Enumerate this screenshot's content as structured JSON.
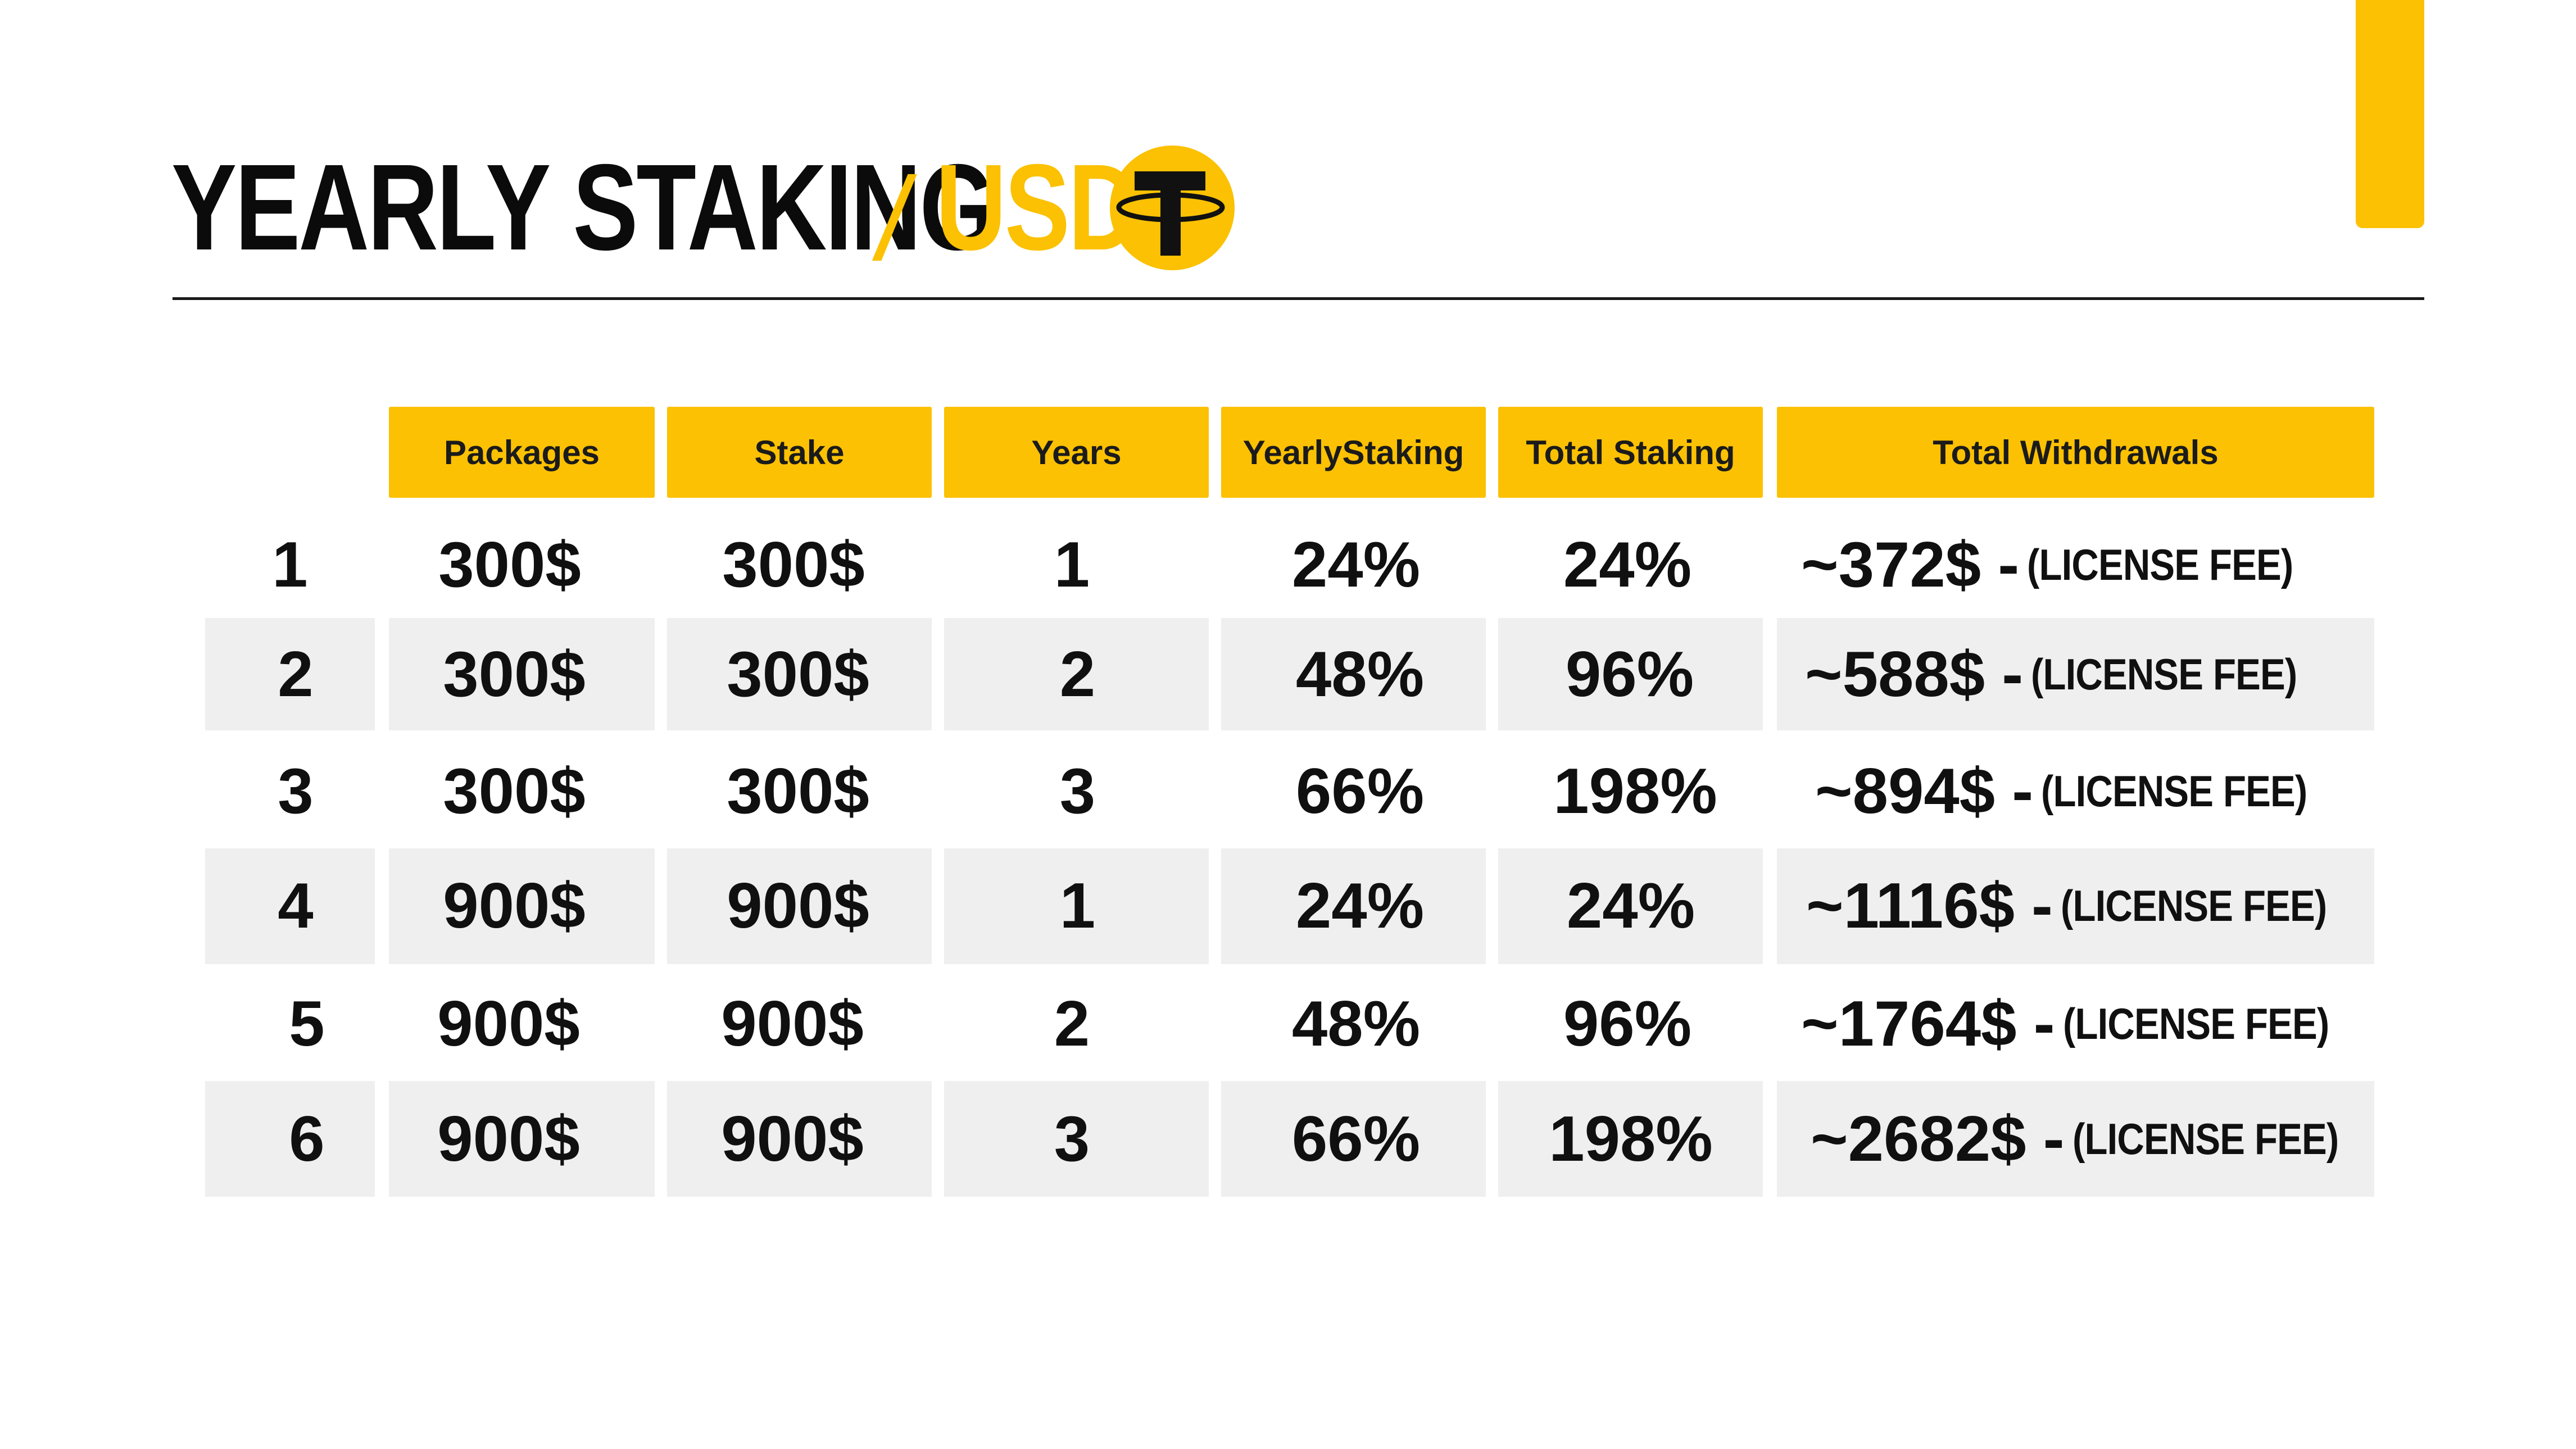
{
  "title": {
    "main": "YEARLY STAKING",
    "slash": "/",
    "accent": "USD",
    "coin_icon": "tether-coin-icon"
  },
  "colors": {
    "accent": "#FBC102",
    "row_shade": "#EFEFEF",
    "text": "#101010"
  },
  "table": {
    "headers": [
      "Packages",
      "Stake",
      "Years",
      "YearlyStaking",
      "Total Staking",
      "Total Withdrawals"
    ],
    "rows": [
      {
        "index": "1",
        "package": "300$",
        "stake": "300$",
        "years": "1",
        "yearly": "24%",
        "total": "24%",
        "withdrawal": "~372$",
        "dash": "-",
        "fee": "(LICENSE FEE)"
      },
      {
        "index": "2",
        "package": "300$",
        "stake": "300$",
        "years": "2",
        "yearly": "48%",
        "total": "96%",
        "withdrawal": "~588$",
        "dash": "-",
        "fee": "(LICENSE FEE)"
      },
      {
        "index": "3",
        "package": "300$",
        "stake": "300$",
        "years": "3",
        "yearly": "66%",
        "total": "198%",
        "withdrawal": "~894$",
        "dash": "-",
        "fee": "(LICENSE FEE)"
      },
      {
        "index": "4",
        "package": "900$",
        "stake": "900$",
        "years": "1",
        "yearly": "24%",
        "total": "24%",
        "withdrawal": "~1116$",
        "dash": "-",
        "fee": "(LICENSE FEE)"
      },
      {
        "index": "5",
        "package": "900$",
        "stake": "900$",
        "years": "2",
        "yearly": "48%",
        "total": "96%",
        "withdrawal": "~1764$",
        "dash": "-",
        "fee": "(LICENSE FEE)"
      },
      {
        "index": "6",
        "package": "900$",
        "stake": "900$",
        "years": "3",
        "yearly": "66%",
        "total": "198%",
        "withdrawal": "~2682$",
        "dash": "-",
        "fee": "(LICENSE FEE)"
      }
    ]
  }
}
